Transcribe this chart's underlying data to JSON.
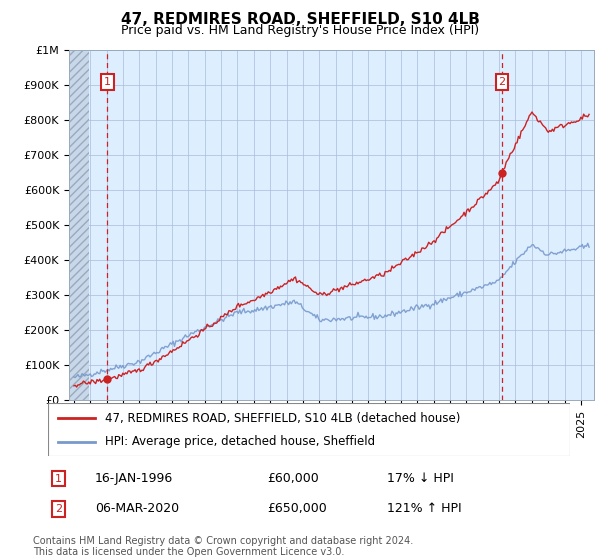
{
  "title": "47, REDMIRES ROAD, SHEFFIELD, S10 4LB",
  "subtitle": "Price paid vs. HM Land Registry's House Price Index (HPI)",
  "ylim": [
    0,
    1000000
  ],
  "yticks": [
    0,
    100000,
    200000,
    300000,
    400000,
    500000,
    600000,
    700000,
    800000,
    900000,
    1000000
  ],
  "ytick_labels": [
    "£0",
    "£100K",
    "£200K",
    "£300K",
    "£400K",
    "£500K",
    "£600K",
    "£700K",
    "£800K",
    "£900K",
    "£1M"
  ],
  "xlim_start": 1993.7,
  "xlim_end": 2025.8,
  "hpi_color": "#7799cc",
  "price_color": "#cc2222",
  "vline_color": "#cc2222",
  "background_color": "#ddeeff",
  "grid_color": "#aabbdd",
  "transaction1_x": 1996.04,
  "transaction1_y": 60000,
  "transaction2_x": 2020.18,
  "transaction2_y": 650000,
  "legend_label1": "47, REDMIRES ROAD, SHEFFIELD, S10 4LB (detached house)",
  "legend_label2": "HPI: Average price, detached house, Sheffield",
  "annotation1_date": "16-JAN-1996",
  "annotation1_price": "£60,000",
  "annotation1_hpi": "17% ↓ HPI",
  "annotation2_date": "06-MAR-2020",
  "annotation2_price": "£650,000",
  "annotation2_hpi": "121% ↑ HPI",
  "footer": "Contains HM Land Registry data © Crown copyright and database right 2024.\nThis data is licensed under the Open Government Licence v3.0.",
  "title_fontsize": 11,
  "subtitle_fontsize": 9,
  "tick_fontsize": 8,
  "legend_fontsize": 8.5,
  "annotation_fontsize": 9
}
